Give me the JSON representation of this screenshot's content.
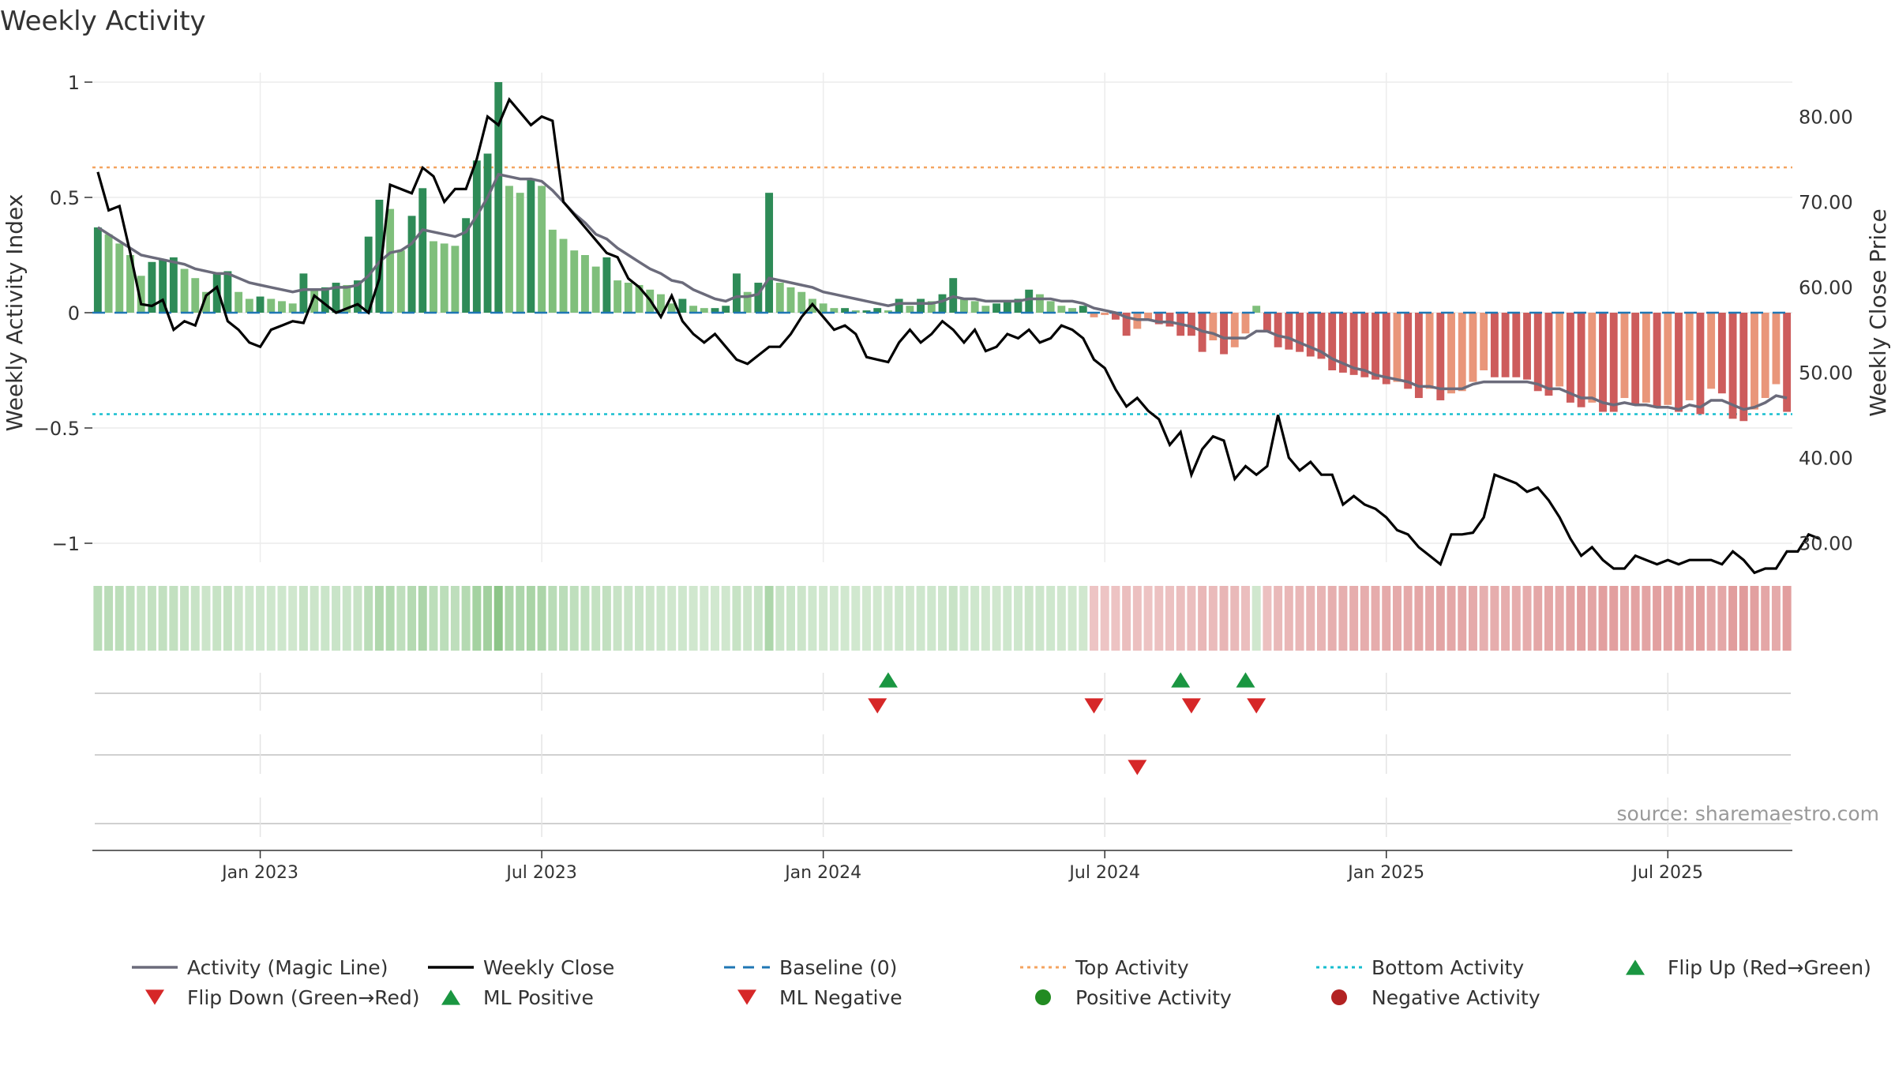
{
  "title": "Weekly Activity",
  "source": "source: sharemaestro.com",
  "colors": {
    "pos_strong": "#2e8b57",
    "pos_weak": "#7fbf7b",
    "neg_strong": "#cd5c5c",
    "neg_weak": "#e9967a",
    "magic_line": "#6b6b7b",
    "close_line": "#000000",
    "baseline": "#1f77b4",
    "top_line": "#f4a460",
    "bottom_line": "#17becf",
    "flip_up": "#1a9641",
    "flip_down": "#d62728",
    "ml_negative": "#d62728",
    "positive_activity": "#228b22",
    "negative_activity": "#b22222"
  },
  "chart_data": {
    "type": "bar+line",
    "ylabel": "Weekly Activity Index",
    "y2label": "Weekly Close Price",
    "ylim": [
      -1.1,
      1.1
    ],
    "y2lim": [
      26.5,
      88.0
    ],
    "y_ticks": [
      1,
      0.5,
      0,
      -0.5,
      -1
    ],
    "y_tick_labels": [
      "1",
      "0.5",
      "0",
      "−0.5",
      "−1"
    ],
    "y2_ticks": [
      80,
      70,
      60,
      50,
      40,
      30
    ],
    "y2_tick_labels": [
      "80.00",
      "70.00",
      "60.00",
      "50.00",
      "40.00",
      "30.00"
    ],
    "x_tick_labels": [
      "Jan 2023",
      "Jul 2023",
      "Jan 2024",
      "Jul 2024",
      "Jan 2025",
      "Jul 2025"
    ],
    "x_tick_weeks": [
      15,
      41,
      67,
      93,
      119,
      145
    ],
    "num_weeks": 157,
    "top_activity": 0.63,
    "bottom_activity": -0.44,
    "activity": [
      0.37,
      0.34,
      0.3,
      0.25,
      0.16,
      0.22,
      0.23,
      0.24,
      0.19,
      0.15,
      0.09,
      0.17,
      0.18,
      0.09,
      0.06,
      0.07,
      0.06,
      0.05,
      0.04,
      0.17,
      0.1,
      0.11,
      0.13,
      0.12,
      0.14,
      0.33,
      0.49,
      0.45,
      0.27,
      0.42,
      0.54,
      0.31,
      0.3,
      0.29,
      0.41,
      0.66,
      0.69,
      1.0,
      0.55,
      0.52,
      0.58,
      0.55,
      0.36,
      0.32,
      0.27,
      0.25,
      0.2,
      0.24,
      0.14,
      0.13,
      0.12,
      0.1,
      0.08,
      0.04,
      0.06,
      0.03,
      0.02,
      0.02,
      0.03,
      0.17,
      0.09,
      0.13,
      0.52,
      0.13,
      0.11,
      0.09,
      0.06,
      0.04,
      0.02,
      0.02,
      0.01,
      0.01,
      0.02,
      0.01,
      0.06,
      0.03,
      0.06,
      0.05,
      0.08,
      0.15,
      0.06,
      0.05,
      0.03,
      0.04,
      0.05,
      0.06,
      0.1,
      0.08,
      0.05,
      0.03,
      0.02,
      0.03,
      -0.02,
      -0.01,
      -0.03,
      -0.1,
      -0.07,
      -0.03,
      -0.05,
      -0.06,
      -0.1,
      -0.1,
      -0.17,
      -0.12,
      -0.18,
      -0.15,
      -0.09,
      0.03,
      -0.08,
      -0.15,
      -0.16,
      -0.17,
      -0.19,
      -0.2,
      -0.25,
      -0.26,
      -0.27,
      -0.28,
      -0.29,
      -0.31,
      -0.3,
      -0.33,
      -0.37,
      -0.33,
      -0.38,
      -0.35,
      -0.34,
      -0.3,
      -0.25,
      -0.28,
      -0.28,
      -0.28,
      -0.29,
      -0.34,
      -0.36,
      -0.32,
      -0.39,
      -0.41,
      -0.39,
      -0.43,
      -0.43,
      -0.37,
      -0.4,
      -0.39,
      -0.41,
      -0.4,
      -0.43,
      -0.38,
      -0.44,
      -0.33,
      -0.35,
      -0.46,
      -0.47,
      -0.42,
      -0.37,
      -0.31,
      -0.43
    ],
    "magic_line": [
      0.37,
      0.34,
      0.31,
      0.28,
      0.25,
      0.24,
      0.23,
      0.22,
      0.21,
      0.19,
      0.18,
      0.17,
      0.17,
      0.15,
      0.13,
      0.12,
      0.11,
      0.1,
      0.09,
      0.1,
      0.1,
      0.1,
      0.11,
      0.11,
      0.12,
      0.16,
      0.22,
      0.26,
      0.27,
      0.3,
      0.36,
      0.35,
      0.34,
      0.33,
      0.35,
      0.42,
      0.5,
      0.6,
      0.59,
      0.58,
      0.58,
      0.57,
      0.53,
      0.48,
      0.43,
      0.39,
      0.34,
      0.32,
      0.28,
      0.25,
      0.22,
      0.19,
      0.17,
      0.14,
      0.13,
      0.1,
      0.08,
      0.06,
      0.05,
      0.07,
      0.07,
      0.08,
      0.15,
      0.14,
      0.13,
      0.12,
      0.11,
      0.09,
      0.08,
      0.07,
      0.06,
      0.05,
      0.04,
      0.03,
      0.04,
      0.04,
      0.04,
      0.04,
      0.05,
      0.07,
      0.06,
      0.06,
      0.05,
      0.05,
      0.05,
      0.05,
      0.06,
      0.06,
      0.06,
      0.05,
      0.05,
      0.04,
      0.02,
      0.01,
      -0.0,
      -0.02,
      -0.03,
      -0.03,
      -0.04,
      -0.04,
      -0.05,
      -0.06,
      -0.08,
      -0.09,
      -0.11,
      -0.11,
      -0.11,
      -0.08,
      -0.08,
      -0.1,
      -0.11,
      -0.13,
      -0.15,
      -0.17,
      -0.2,
      -0.22,
      -0.24,
      -0.25,
      -0.27,
      -0.28,
      -0.29,
      -0.3,
      -0.32,
      -0.32,
      -0.33,
      -0.33,
      -0.33,
      -0.31,
      -0.3,
      -0.3,
      -0.3,
      -0.3,
      -0.3,
      -0.31,
      -0.33,
      -0.33,
      -0.35,
      -0.37,
      -0.37,
      -0.39,
      -0.4,
      -0.39,
      -0.4,
      -0.4,
      -0.41,
      -0.41,
      -0.42,
      -0.4,
      -0.41,
      -0.38,
      -0.38,
      -0.4,
      -0.42,
      -0.41,
      -0.39,
      -0.36,
      -0.37
    ],
    "weekly_close": [
      73.5,
      69.0,
      69.5,
      64.0,
      58.0,
      57.8,
      58.5,
      55.0,
      56.0,
      55.5,
      59.0,
      60.0,
      56.0,
      55.0,
      53.5,
      53.0,
      55.0,
      55.5,
      56.0,
      55.8,
      59.0,
      58.0,
      57.0,
      57.5,
      58.0,
      57.0,
      61.0,
      72.0,
      71.5,
      71.0,
      74.0,
      73.0,
      70.0,
      71.5,
      71.5,
      75.0,
      80.0,
      79.0,
      82.0,
      80.5,
      79.0,
      80.0,
      79.5,
      70.0,
      68.5,
      67.0,
      65.5,
      64.0,
      63.5,
      61.0,
      60.0,
      58.5,
      56.5,
      59.0,
      56.0,
      54.5,
      53.5,
      54.5,
      53.0,
      51.5,
      51.0,
      52.0,
      53.0,
      53.0,
      54.5,
      56.5,
      58.0,
      56.5,
      55.0,
      55.5,
      54.5,
      51.8,
      51.5,
      51.2,
      53.5,
      55.0,
      53.5,
      54.5,
      56.0,
      55.0,
      53.5,
      55.0,
      52.5,
      53.0,
      54.5,
      54.0,
      55.0,
      53.5,
      54.0,
      55.5,
      55.0,
      54.0,
      51.5,
      50.5,
      48.0,
      46.0,
      47.0,
      45.5,
      44.5,
      41.5,
      43.0,
      38.0,
      41.0,
      42.5,
      42.0,
      37.5,
      39.0,
      38.0,
      39.0,
      45.0,
      40.0,
      38.5,
      39.5,
      38.0,
      38.0,
      34.5,
      35.5,
      34.5,
      34.0,
      33.0,
      31.5,
      31.0,
      29.5,
      28.5,
      27.5,
      31.0,
      31.0,
      31.2,
      33.0,
      38.0,
      37.5,
      37.0,
      36.0,
      36.5,
      35.0,
      33.0,
      30.5,
      28.5,
      29.5,
      28.0,
      27.0,
      27.0,
      28.5,
      28.0,
      27.5,
      28.0,
      27.5,
      28.0,
      28.0,
      28.0,
      27.5,
      29.0,
      28.0,
      26.5,
      27.0,
      27.0,
      29.0,
      29.0,
      31.0,
      30.5
    ]
  },
  "legend": [
    {
      "label": "Activity (Magic Line)",
      "kind": "line",
      "color": "#6b6b7b"
    },
    {
      "label": "Weekly Close",
      "kind": "line",
      "color": "#000000"
    },
    {
      "label": "Baseline (0)",
      "kind": "dash",
      "color": "#1f77b4"
    },
    {
      "label": "Top Activity",
      "kind": "dot",
      "color": "#f4a460"
    },
    {
      "label": "Bottom Activity",
      "kind": "dot",
      "color": "#17becf"
    },
    {
      "label": "Flip Up (Red→Green)",
      "kind": "tri-up",
      "color": "#1a9641"
    },
    {
      "label": "Flip Down (Green→Red)",
      "kind": "tri-down",
      "color": "#d62728"
    },
    {
      "label": "ML Positive",
      "kind": "tri-up",
      "color": "#1a9641"
    },
    {
      "label": "ML Negative",
      "kind": "tri-down",
      "color": "#d62728"
    },
    {
      "label": "Positive Activity",
      "kind": "circle",
      "color": "#228b22"
    },
    {
      "label": "Negative Activity",
      "kind": "circle",
      "color": "#b22222"
    }
  ],
  "flip_up_weeks": [
    73,
    100,
    106
  ],
  "flip_down_weeks": [
    72,
    92,
    101,
    107
  ],
  "ml_negative_weeks": [
    96
  ]
}
